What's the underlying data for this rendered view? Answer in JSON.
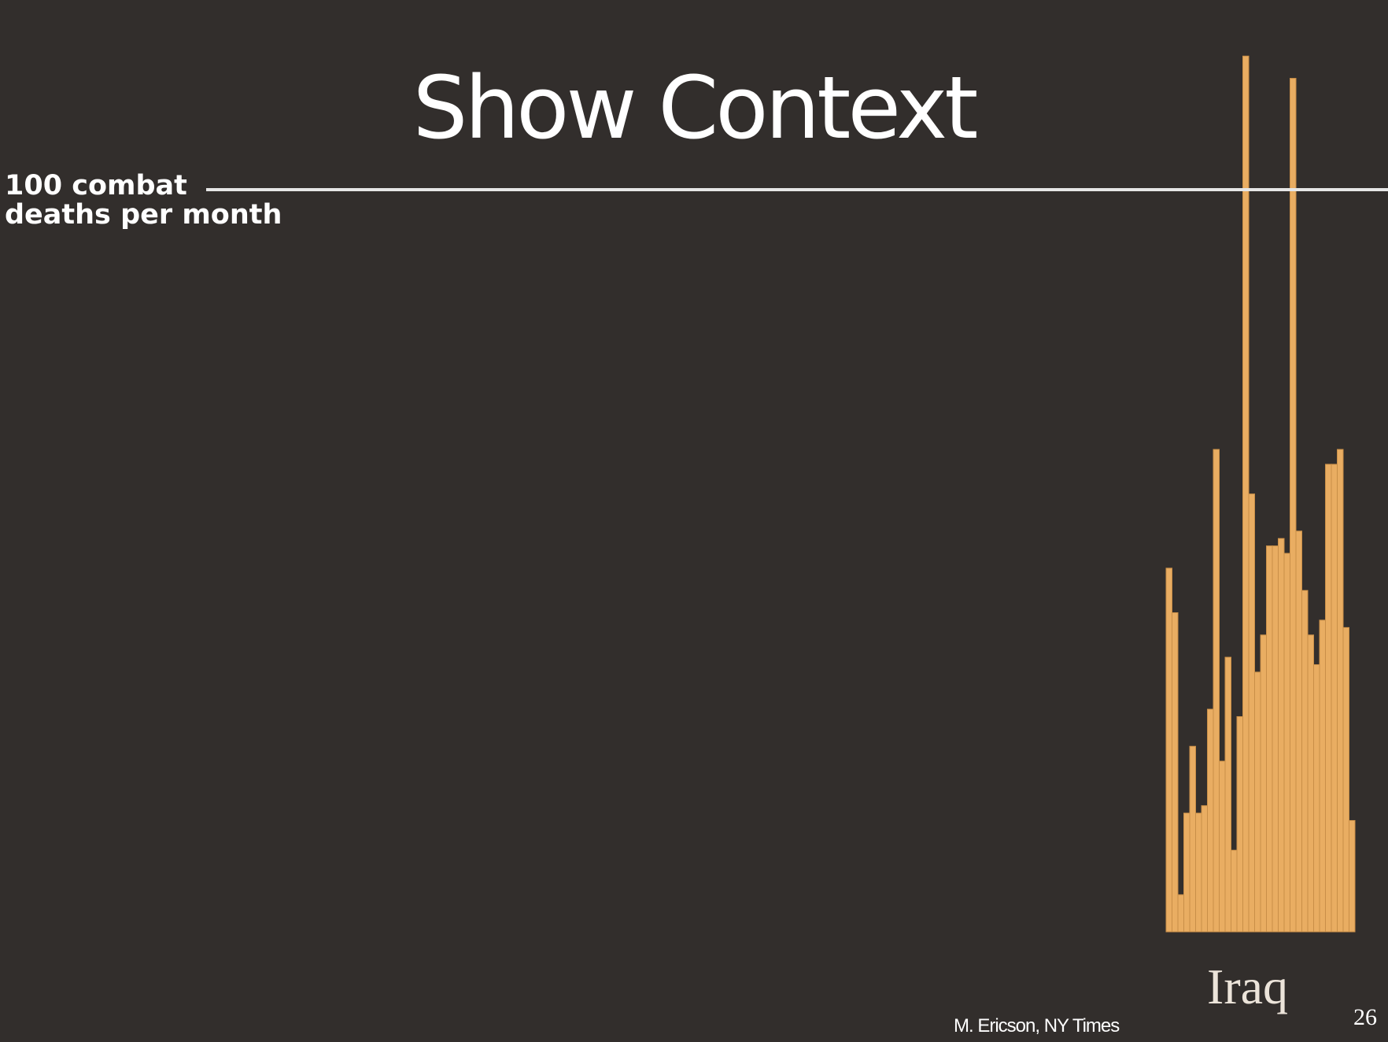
{
  "slide": {
    "title": "Show Context",
    "credit": "M. Ericson, NY Times",
    "page_number": "26"
  },
  "colors": {
    "background": "#322e2c",
    "bar_fill": "#e9ad62",
    "bar_stroke": "#c98f48",
    "reference_line": "#e6e6e6",
    "text": "#ffffff"
  },
  "chart_data": {
    "type": "bar",
    "title": "",
    "xlabel": "",
    "ylabel": "",
    "grid": false,
    "reference_line": {
      "value": 100,
      "label_line1": "100 combat",
      "label_line2": "deaths per month"
    },
    "series": [
      {
        "name": "Iraq",
        "values": [
          49,
          43,
          5,
          16,
          25,
          16,
          17,
          30,
          65,
          23,
          37,
          11,
          29,
          118,
          59,
          35,
          40,
          52,
          52,
          53,
          51,
          115,
          54,
          46,
          40,
          36,
          42,
          63,
          63,
          65,
          41,
          15
        ]
      }
    ],
    "ylim": [
      0,
      125
    ]
  }
}
